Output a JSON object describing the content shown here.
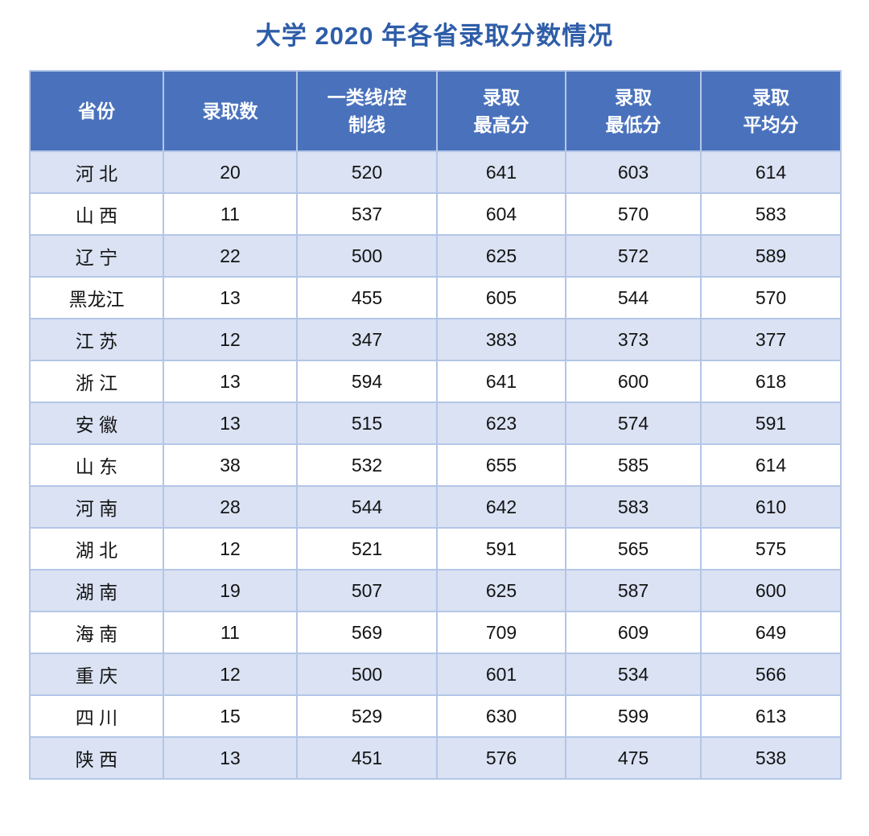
{
  "title": "大学 2020 年各省录取分数情况",
  "colors": {
    "header_bg": "#4a72bc",
    "stripe_bg": "#dae2f3",
    "border": "#b4c6e7",
    "title_text": "#2e5da8",
    "header_text": "#ffffff",
    "body_text": "#141414"
  },
  "table": {
    "columns": [
      {
        "label": "省份"
      },
      {
        "label": "录取数"
      },
      {
        "label": "一类线/控\n制线"
      },
      {
        "label": "录取\n最高分"
      },
      {
        "label": "录取\n最低分"
      },
      {
        "label": "录取\n平均分"
      }
    ],
    "rows": [
      {
        "province": "河 北",
        "cells": [
          "20",
          "520",
          "641",
          "603",
          "614"
        ]
      },
      {
        "province": "山 西",
        "cells": [
          "11",
          "537",
          "604",
          "570",
          "583"
        ]
      },
      {
        "province": "辽 宁",
        "cells": [
          "22",
          "500",
          "625",
          "572",
          "589"
        ]
      },
      {
        "province": "黑龙江",
        "cells": [
          "13",
          "455",
          "605",
          "544",
          "570"
        ]
      },
      {
        "province": "江 苏",
        "cells": [
          "12",
          "347",
          "383",
          "373",
          "377"
        ]
      },
      {
        "province": "浙 江",
        "cells": [
          "13",
          "594",
          "641",
          "600",
          "618"
        ]
      },
      {
        "province": "安 徽",
        "cells": [
          "13",
          "515",
          "623",
          "574",
          "591"
        ]
      },
      {
        "province": "山 东",
        "cells": [
          "38",
          "532",
          "655",
          "585",
          "614"
        ]
      },
      {
        "province": "河 南",
        "cells": [
          "28",
          "544",
          "642",
          "583",
          "610"
        ]
      },
      {
        "province": "湖 北",
        "cells": [
          "12",
          "521",
          "591",
          "565",
          "575"
        ]
      },
      {
        "province": "湖 南",
        "cells": [
          "19",
          "507",
          "625",
          "587",
          "600"
        ]
      },
      {
        "province": "海 南",
        "cells": [
          "11",
          "569",
          "709",
          "609",
          "649"
        ]
      },
      {
        "province": "重 庆",
        "cells": [
          "12",
          "500",
          "601",
          "534",
          "566"
        ]
      },
      {
        "province": "四 川",
        "cells": [
          "15",
          "529",
          "630",
          "599",
          "613"
        ]
      },
      {
        "province": "陕 西",
        "cells": [
          "13",
          "451",
          "576",
          "475",
          "538"
        ]
      }
    ]
  }
}
